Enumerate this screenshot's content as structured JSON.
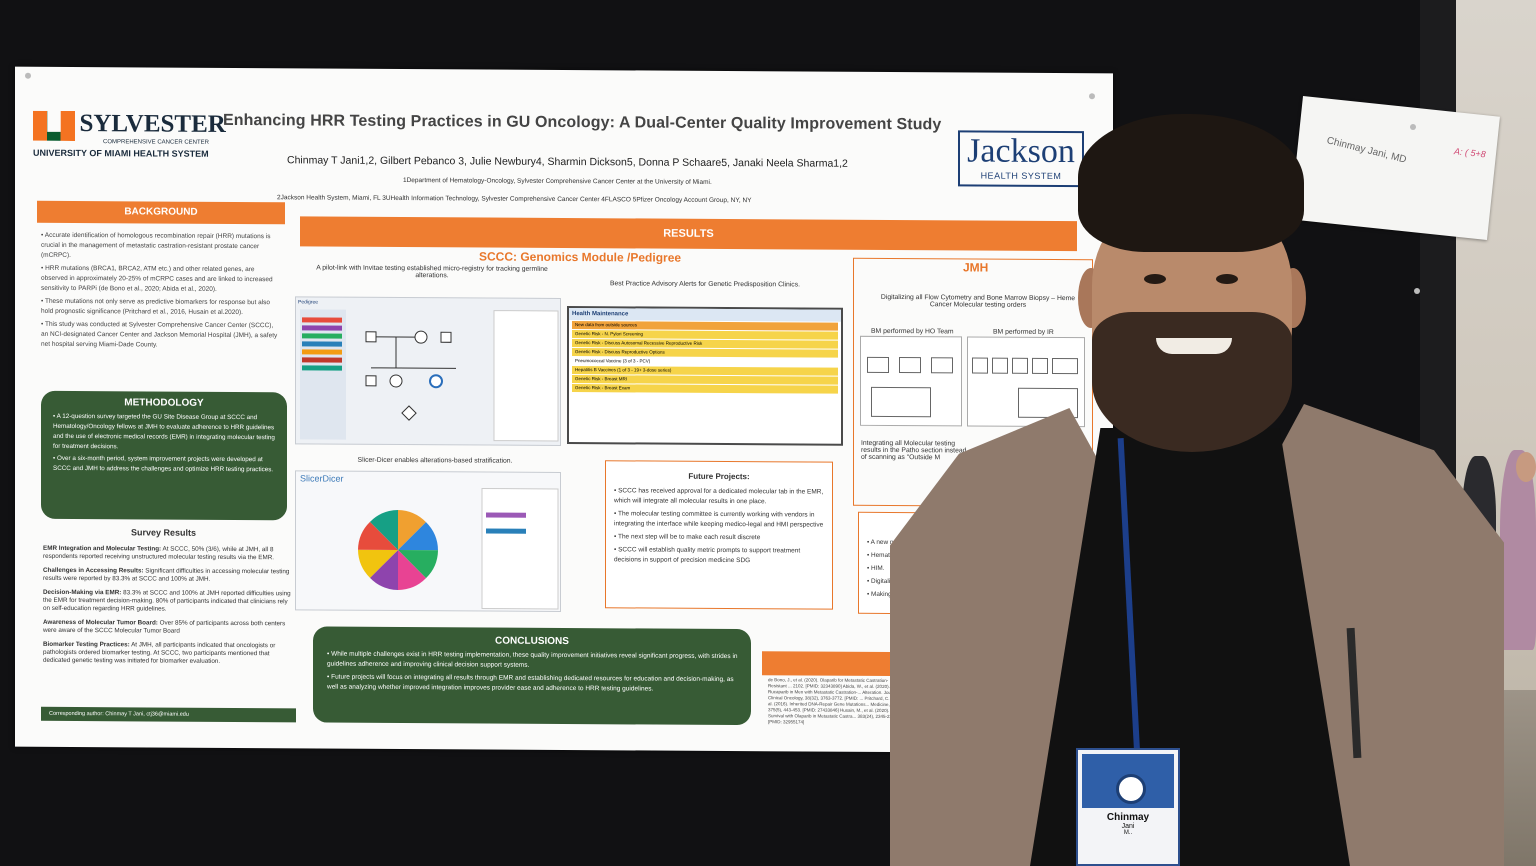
{
  "poster": {
    "title": "Enhancing HRR Testing Practices in GU Oncology: A Dual-Center Quality Improvement Study",
    "authors": "Chinmay T Jani1,2, Gilbert Pebanco 3, Julie Newbury4, Sharmin Dickson5, Donna P  Schaare5, Janaki Neela Sharma1,2",
    "affiliation_1": "1Department of Hematology-Oncology, Sylvester Comprehensive Cancer Center at the University of Miami.",
    "affiliation_2": "2Jackson Health System, Miami, FL 3UHealth Information Technology, Sylvester Comprehensive Cancer Center 4FLASCO 5Pfizer Oncology Account Group, NY, NY",
    "left_logo": {
      "name": "SYLVESTER",
      "sub": "COMPREHENSIVE CANCER CENTER",
      "line": "UNIVERSITY OF MIAMI HEALTH SYSTEM"
    },
    "right_logo": {
      "name": "Jackson",
      "sub": "HEALTH SYSTEM"
    },
    "background": {
      "heading": "BACKGROUND",
      "items": [
        "Accurate identification of homologous recombination repair (HRR) mutations is crucial in the management of metastatic castration-resistant prostate cancer (mCRPC).",
        "HRR mutations (BRCA1, BRCA2, ATM etc.) and other related genes, are observed in approximately 20-25% of mCRPC cases and are linked to increased sensitivity to PARPi (de Bono et al., 2020; Abida et al., 2020).",
        "These mutations not only serve as predictive biomarkers for response but also hold prognostic significance (Pritchard et al., 2016, Husain et al.2020).",
        "This study was conducted at Sylvester Comprehensive Cancer Center (SCCC), an NCI-designated Cancer Center and Jackson Memorial Hospital (JMH), a safety net hospital serving Miami-Dade County."
      ]
    },
    "methodology": {
      "heading": "METHODOLOGY",
      "items": [
        "A 12-question survey targeted the GU Site Disease Group at SCCC and Hematology/Oncology fellows at JMH to evaluate adherence to HRR guidelines and the use of electronic medical records (EMR) in integrating molecular testing for treatment decisions.",
        "Over a six-month period, system improvement projects were developed at SCCC and JMH to address the challenges and optimize HRR testing practices."
      ]
    },
    "survey": {
      "heading": "Survey Results",
      "items": [
        {
          "label": "EMR Integration and Molecular Testing:",
          "text": " At SCCC, 50% (3/6), while at JMH, all 8 respondents reported receiving unstructured molecular testing results via the EMR."
        },
        {
          "label": "Challenges in Accessing Results:",
          "text": " Significant difficulties in accessing molecular testing results were reported by 83.3% at SCCC and 100% at JMH."
        },
        {
          "label": "Decision-Making via EMR:",
          "text": " 83.3% at SCCC and 100% at JMH reported difficulties using the EMR for treatment decision-making.  80% of participants indicated that clinicians rely on self-education regarding HRR guidelines."
        },
        {
          "label": "Awareness of Molecular Tumor Board:",
          "text": " Over 85% of participants across both centers were aware of the SCCC Molecular Tumor Board"
        },
        {
          "label": "Biomarker Testing Practices:",
          "text": " At JMH, all participants indicated that oncologists or pathologists ordered biomarker testing. At SCCC, two participants mentioned that dedicated genetic testing was initiated for biomarker evaluation."
        }
      ]
    },
    "corresponding": "Corresponding author:  Chinmay T Jani, ctj36@miami.edu",
    "results": {
      "heading": "RESULTS",
      "sccc_heading": "SCCC: Genomics Module /Pedigree",
      "pilot_caption": "A pilot-link with Invitae testing established micro-registry for tracking germline alterations.",
      "bpa_caption": "Best Practice Advisory Alerts for Genetic Predisposition Clinics.",
      "pedigree_label": "Pedigree",
      "health_title": "Health Maintenance",
      "health_alert": "New data from outside sources",
      "health_rows": [
        "Genetic Risk - N. Pylori Screening",
        "Genetic Risk - Discuss Autosomal Recessive Reproductive Risk",
        "Genetic Risk - Discuss Reproductive Options",
        "Pneumococcal Vaccine (3 of 3 - PCV)",
        "Hepatitis B Vaccines (1 of 3 - 19+ 3-dose series)",
        "Genetic Risk - Breast MRI",
        "Genetic Risk - Breast Exam"
      ],
      "slicer_caption": "Slicer-Dicer enables alterations-based stratification.",
      "slicer_title": "SlicerDicer",
      "jmh_heading": "JMH",
      "jmh_caption": "Digitalizing all Flow Cytometry and Bone Marrow Biopsy – Heme Cancer Molecular testing orders",
      "bm_ho": "BM performed by HO Team",
      "bm_ir": "BM performed by IR",
      "jmh_caption_2": "Integrating all Molecular testing results in the Patho section instead of scanning as \"Outside M"
    },
    "future": {
      "heading": "Future Projects:",
      "items": [
        "SCCC has received approval for a dedicated molecular tab in the EMR, which will integrate all molecular results in one place.",
        "The molecular testing committee is currently working with vendors in integrating the interface while keeping medico-legal and HMI perspective",
        "The next step will be to make each result discrete",
        "SCCC will establish quality metric prompts to support treatment decisions in support of precision medicine SDG"
      ]
    },
    "future_jmh": {
      "heading": "Fu",
      "items": [
        "A new note structur",
        "Hematology and O",
        "HIM.",
        "Digitalizing Molec",
        "Making each resu"
      ]
    },
    "conclusions": {
      "heading": "CONCLUSIONS",
      "items": [
        "While multiple challenges exist in HRR testing implementation, these quality improvement initiatives reveal significant progress, with strides in guidelines adherence and improving clinical decision support systems.",
        "Future projects will focus on integrating all results through EMR and establishing dedicated resources for education and decision-making, as well as analyzing whether improved integration improves provider ease and adherence to HRR testing guidelines."
      ]
    },
    "references_heading": "REFERE",
    "references": "de Bono, J., et al. (2020). Olaparib for Metastatic Castration-Resistant ... 2102. [PMID: 32343890] Abida, W., et al. (2020). Rucaparib in Men with Metastatic Castration-... Alteration. Journal of Clinical Oncology, 38(32), 3763-3772. [PMID: ... Pritchard, C. C., et al. (2016). Inherited DNA-Repair Gene Mutations... Medicine, 375(5), 443-453. [PMID: 27433846] Husain, M., et al. (2020). Survival with Olaparib in Metastatic Castra... 383(24), 2345-2357. [PMID: 32955174]"
  },
  "note": {
    "name": "Chinmay Jani, MD",
    "handwriting": "A: ( 5+8"
  },
  "badge": {
    "first": "Chinmay",
    "last": "Jani",
    "suffix": "M.."
  },
  "colors": {
    "orange": "#ee7d31",
    "green": "#375b35",
    "jackson_blue": "#1d3f75"
  }
}
